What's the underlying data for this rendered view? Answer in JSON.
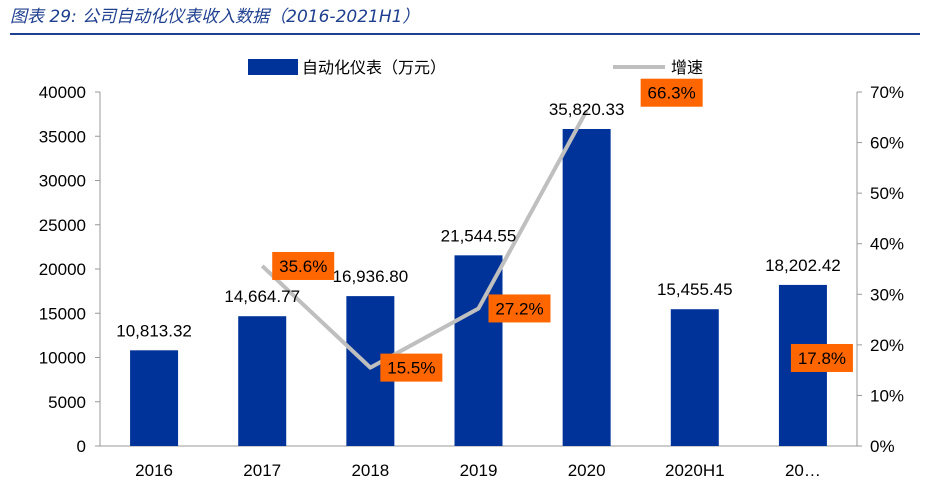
{
  "caption": "图表 29:  公司自动化仪表收入数据（2016-2021H1）",
  "chart_data": {
    "type": "bar",
    "categories": [
      "2016",
      "2017",
      "2018",
      "2019",
      "2020",
      "2020H1",
      "20…"
    ],
    "series": [
      {
        "name": "自动化仪表（万元）",
        "type": "bar",
        "axis": "left",
        "color": "#003399",
        "values": [
          10813.32,
          14664.77,
          16936.8,
          21544.55,
          35820.33,
          15455.45,
          18202.42
        ],
        "labels": [
          "10,813.32",
          "14,664.77",
          "16,936.80",
          "21,544.55",
          "35,820.33",
          "15,455.45",
          "18,202.42"
        ]
      },
      {
        "name": "增速",
        "type": "line",
        "axis": "right",
        "color": "#bfbfbf",
        "values": [
          null,
          35.6,
          15.5,
          27.2,
          66.3,
          null,
          17.8
        ],
        "labels": [
          "",
          "35.6%",
          "15.5%",
          "27.2%",
          "66.3%",
          "",
          "17.8%"
        ]
      }
    ],
    "label_box_color": "#ff6600",
    "y_left": {
      "ylim": [
        0,
        40000
      ],
      "ticks": [
        "0",
        "5000",
        "10000",
        "15000",
        "20000",
        "25000",
        "30000",
        "35000",
        "40000"
      ]
    },
    "y_right": {
      "ylim": [
        0,
        70
      ],
      "ticks": [
        "0%",
        "10%",
        "20%",
        "30%",
        "40%",
        "50%",
        "60%",
        "70%"
      ]
    },
    "legend": "top-center",
    "grid": false
  }
}
